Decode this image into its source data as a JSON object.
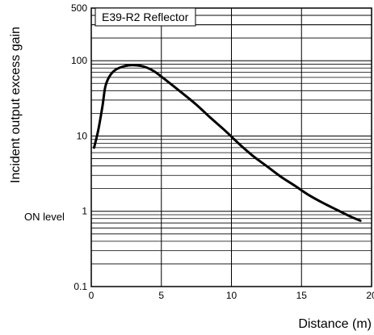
{
  "chart_data": {
    "type": "line",
    "title": "",
    "xlabel": "Distance (m)",
    "ylabel": "Incident output excess gain",
    "xlim": [
      0,
      20
    ],
    "ylim": [
      0.1,
      500
    ],
    "yscale": "log",
    "x_ticks": [
      0,
      5,
      10,
      15,
      20
    ],
    "x_tick_labels": [
      "0",
      "5",
      "10",
      "15",
      "20"
    ],
    "y_ticks": [
      0.1,
      1,
      10,
      100,
      500
    ],
    "y_tick_labels": [
      "0.1",
      "1",
      "10",
      "100",
      "500"
    ],
    "grid": true,
    "annotations": [
      {
        "text": "ON level",
        "y": 1
      }
    ],
    "legend": {
      "placement": "top-left",
      "entries": [
        "E39-R2 Reflector"
      ]
    },
    "series": [
      {
        "name": "E39-R2 Reflector",
        "x": [
          0.2,
          0.5,
          0.8,
          1.0,
          1.3,
          1.7,
          2.2,
          2.7,
          3.2,
          3.8,
          4.5,
          5.5,
          6.5,
          7.5,
          8.5,
          9.5,
          10.5,
          11.5,
          12.5,
          13.5,
          14.5,
          15.5,
          16.5,
          17.5,
          18.5,
          19.2
        ],
        "values": [
          7,
          12,
          25,
          45,
          62,
          75,
          83,
          87,
          87,
          83,
          72,
          52,
          37,
          26,
          17.5,
          12,
          8,
          5.5,
          4,
          2.9,
          2.2,
          1.65,
          1.3,
          1.05,
          0.85,
          0.75
        ]
      }
    ]
  }
}
